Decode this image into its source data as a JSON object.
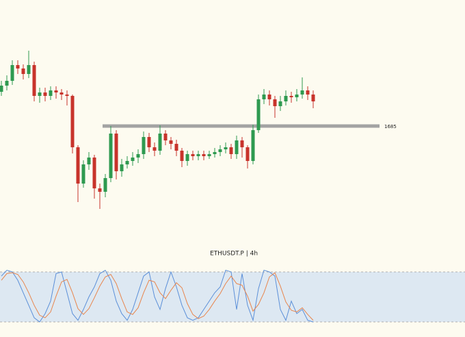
{
  "chart_data": {
    "type": "candlestick",
    "title": "ETHUSDT.P | 4h",
    "up_color": "#2e9a50",
    "down_color": "#c8332b",
    "ylim": [
      1607,
      1777
    ],
    "level": 1685,
    "level_color": "#a3a3a3",
    "open": [
      1710,
      1714.5,
      1718,
      1729.5,
      1727,
      1723,
      1729.5,
      1707,
      1709.5,
      1707,
      1711,
      1709.5,
      1708,
      1707,
      1669.5,
      1643,
      1657,
      1662,
      1639.5,
      1637,
      1647,
      1679.5,
      1652,
      1657,
      1659.5,
      1662,
      1664.5,
      1677,
      1669.5,
      1667,
      1679.5,
      1674.5,
      1672,
      1667,
      1659.5,
      1664.5,
      1663,
      1664.5,
      1663,
      1664.5,
      1666,
      1668,
      1669.5,
      1664.5,
      1674.5,
      1669.5,
      1659.5,
      1682,
      1704.5,
      1708,
      1704.5,
      1699.5,
      1703,
      1707,
      1706,
      1708,
      1711,
      1708
    ],
    "high": [
      1718,
      1722,
      1733,
      1733,
      1730,
      1740,
      1732,
      1713,
      1713,
      1714,
      1714,
      1712,
      1711,
      1708,
      1671,
      1660,
      1666,
      1664,
      1643,
      1650,
      1685,
      1682,
      1661,
      1663,
      1666,
      1668,
      1681,
      1680,
      1673,
      1685.5,
      1682,
      1677,
      1675,
      1669,
      1667,
      1667,
      1667,
      1667,
      1667,
      1669,
      1671,
      1673,
      1672,
      1678,
      1677,
      1671,
      1686,
      1708,
      1712,
      1711,
      1707,
      1707,
      1711,
      1710,
      1712,
      1720.5,
      1714,
      1711
    ],
    "low": [
      1707,
      1711,
      1715,
      1723,
      1719,
      1720,
      1703,
      1702,
      1703,
      1704,
      1705,
      1704,
      1700,
      1665,
      1629.5,
      1640,
      1653,
      1632,
      1624.5,
      1633,
      1644,
      1646,
      1648,
      1654,
      1656,
      1658,
      1661,
      1666,
      1663,
      1664,
      1671,
      1668,
      1663,
      1655,
      1656,
      1660,
      1660,
      1660,
      1661,
      1662,
      1663,
      1665,
      1661,
      1661,
      1662,
      1654,
      1657,
      1680,
      1701,
      1700,
      1691,
      1696,
      1700,
      1702,
      1703,
      1705,
      1704,
      1698
    ],
    "close": [
      1714.5,
      1718,
      1729.5,
      1727,
      1723,
      1729.5,
      1707,
      1709.5,
      1707,
      1711,
      1709.5,
      1708,
      1707,
      1669.5,
      1643,
      1657,
      1662,
      1639.5,
      1637,
      1647,
      1679.5,
      1652,
      1657,
      1659.5,
      1662,
      1664.5,
      1677,
      1669.5,
      1667,
      1679.5,
      1674.5,
      1672,
      1667,
      1659.5,
      1664.5,
      1663,
      1664.5,
      1663,
      1664.5,
      1666,
      1668,
      1669.5,
      1664.5,
      1674.5,
      1669.5,
      1659.5,
      1682,
      1704.5,
      1708,
      1704.5,
      1699.5,
      1703,
      1707,
      1706,
      1708,
      1711,
      1708,
      1703
    ],
    "oscillator": {
      "ylim": [
        5,
        95
      ],
      "band": [
        20,
        80
      ],
      "band_color": "#dde8f2",
      "series": [
        {
          "color": "#5b8fd8",
          "values": [
            75,
            82,
            80,
            70,
            55,
            40,
            25,
            20,
            30,
            45,
            78,
            80,
            55,
            30,
            22,
            35,
            50,
            62,
            78,
            82,
            70,
            45,
            30,
            22,
            35,
            55,
            75,
            80,
            50,
            35,
            60,
            80,
            62,
            40,
            25,
            22,
            25,
            35,
            45,
            55,
            62,
            82,
            80,
            35,
            78,
            40,
            22,
            60,
            82,
            80,
            75,
            35,
            22,
            45,
            30,
            35,
            22,
            20
          ]
        },
        {
          "color": "#e8854c",
          "values": [
            70,
            78,
            79,
            77,
            68,
            55,
            40,
            28,
            25,
            32,
            51,
            68,
            71,
            55,
            36,
            29,
            36,
            49,
            63,
            74,
            77,
            66,
            48,
            32,
            29,
            37,
            55,
            70,
            68,
            55,
            48,
            58,
            67,
            61,
            42,
            29,
            24,
            27,
            35,
            45,
            54,
            66,
            75,
            66,
            64,
            51,
            33,
            41,
            55,
            74,
            79,
            63,
            44,
            34,
            32,
            37,
            29,
            22
          ]
        }
      ]
    }
  }
}
